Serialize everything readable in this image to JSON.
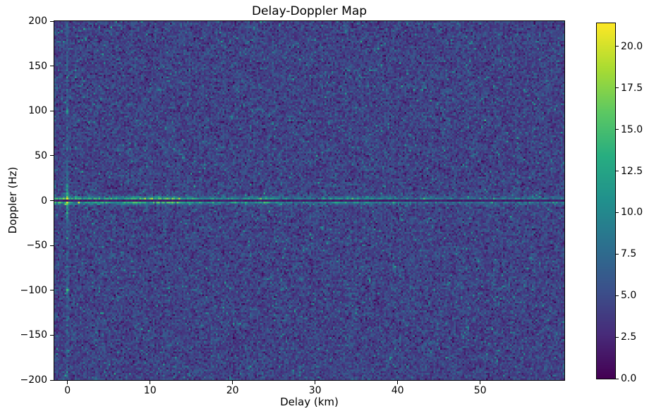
{
  "figure": {
    "title": "Delay-Doppler Map",
    "xlabel": "Delay (km)",
    "ylabel": "Doppler (Hz)",
    "background_color": "#ffffff"
  },
  "chart_data": {
    "type": "heatmap",
    "title": "Delay-Doppler Map",
    "xlabel": "Delay (km)",
    "ylabel": "Doppler (Hz)",
    "x_range_km": [
      -1.6,
      60.2
    ],
    "y_range_hz": [
      -200,
      200
    ],
    "x_ticks": [
      0,
      10,
      20,
      30,
      40,
      50
    ],
    "y_ticks": [
      200,
      150,
      100,
      50,
      0,
      -50,
      -100,
      -150,
      -200
    ],
    "grid": false,
    "colormap": "viridis",
    "colormap_stops": [
      "#440154",
      "#472c7a",
      "#3b518b",
      "#2c718e",
      "#21908d",
      "#27ad81",
      "#5cc863",
      "#aadc32",
      "#fde725"
    ],
    "vmin": 0.0,
    "vmax": 21.4,
    "colorbar_ticks": [
      20.0,
      17.5,
      15.0,
      12.5,
      10.0,
      7.5,
      5.0,
      2.5,
      0.0
    ],
    "grid_bins": {
      "x": 300,
      "y": 201
    },
    "noise_floor": {
      "mean": 4.3,
      "std": 1.4
    },
    "features": [
      {
        "name": "main-peak",
        "delay_km": 0,
        "doppler_hz": 0,
        "peak_value": 21.4,
        "description": "bright yellow direct-signal peak at zero delay / zero Doppler"
      },
      {
        "name": "zero-doppler-ridge",
        "doppler_hz": 0,
        "near_value": 13,
        "far_value": 7,
        "description": "bright clutter ridge along all delays at 0 Hz with a thin dark null line exactly at 0 Hz"
      },
      {
        "name": "zero-delay-streak",
        "delay_km": 0,
        "description": "faint vertical streak at zero delay spanning all Doppler frequencies"
      },
      {
        "name": "doppler-ambiguity-positive",
        "delay_km": 0,
        "doppler_hz": 100,
        "peak_value": 11,
        "description": "faint sidelobe spot at +100 Hz"
      },
      {
        "name": "doppler-ambiguity-negative",
        "delay_km": 0,
        "doppler_hz": -100,
        "peak_value": 11,
        "description": "faint sidelobe spot at -100 Hz"
      },
      {
        "name": "ridge-bright-clusters",
        "delay_km_centers": [
          12,
          23.8,
          34.8
        ],
        "description": "brighter patches along the 0 Hz ridge"
      }
    ],
    "seed": 20240613
  }
}
